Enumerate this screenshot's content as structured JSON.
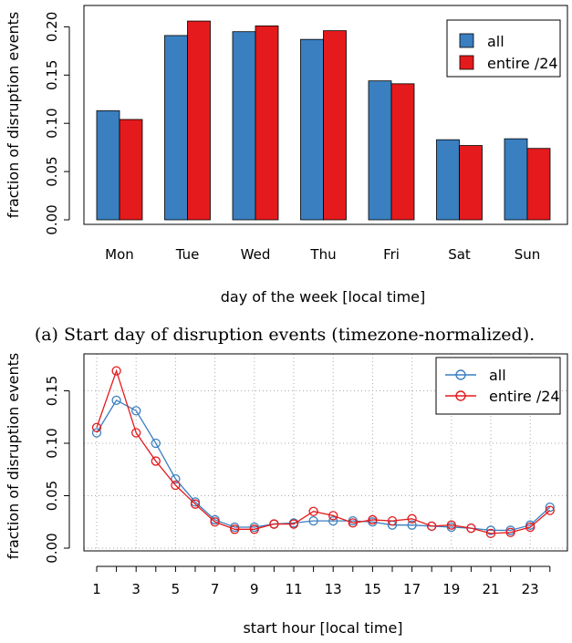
{
  "caption_a": "(a) Start day of disruption events (timezone-normalized).",
  "colors": {
    "all": "#3a7fbf",
    "entire": "#e41a1c"
  },
  "chart_data": [
    {
      "type": "bar",
      "title": "",
      "categories": [
        "Mon",
        "Tue",
        "Wed",
        "Thu",
        "Fri",
        "Sat",
        "Sun"
      ],
      "series": [
        {
          "name": "all",
          "values": [
            0.113,
            0.191,
            0.195,
            0.187,
            0.144,
            0.083,
            0.084
          ]
        },
        {
          "name": "entire /24",
          "values": [
            0.104,
            0.206,
            0.201,
            0.196,
            0.141,
            0.077,
            0.074
          ]
        }
      ],
      "xlabel": "day of the week [local time]",
      "ylabel": "fraction of disruption events",
      "ylim": [
        0,
        0.21
      ],
      "yticks": [
        "0.00",
        "0.05",
        "0.10",
        "0.15",
        "0.20"
      ],
      "legend_position": "top-right",
      "grid": false
    },
    {
      "type": "line",
      "title": "",
      "x": [
        1,
        2,
        3,
        4,
        5,
        6,
        7,
        8,
        9,
        10,
        11,
        12,
        13,
        14,
        15,
        16,
        17,
        18,
        19,
        20,
        21,
        22,
        23,
        24
      ],
      "series": [
        {
          "name": "all",
          "values": [
            0.11,
            0.141,
            0.131,
            0.1,
            0.066,
            0.044,
            0.027,
            0.02,
            0.02,
            0.023,
            0.024,
            0.026,
            0.026,
            0.026,
            0.025,
            0.022,
            0.022,
            0.021,
            0.02,
            0.019,
            0.017,
            0.017,
            0.022,
            0.039
          ]
        },
        {
          "name": "entire /24",
          "values": [
            0.115,
            0.169,
            0.11,
            0.083,
            0.06,
            0.042,
            0.025,
            0.018,
            0.018,
            0.023,
            0.023,
            0.035,
            0.031,
            0.024,
            0.027,
            0.026,
            0.028,
            0.021,
            0.022,
            0.019,
            0.014,
            0.015,
            0.02,
            0.036
          ]
        }
      ],
      "xlabel": "start hour [local time]",
      "ylabel": "fraction of disruption events",
      "xlim": [
        1,
        24
      ],
      "xtick_labels": [
        "1",
        "3",
        "5",
        "7",
        "9",
        "11",
        "13",
        "15",
        "17",
        "19",
        "21",
        "23"
      ],
      "ylim": [
        0,
        0.175
      ],
      "yticks": [
        "0.00",
        "0.05",
        "0.10",
        "0.15"
      ],
      "legend_position": "top-right",
      "grid": true
    }
  ]
}
